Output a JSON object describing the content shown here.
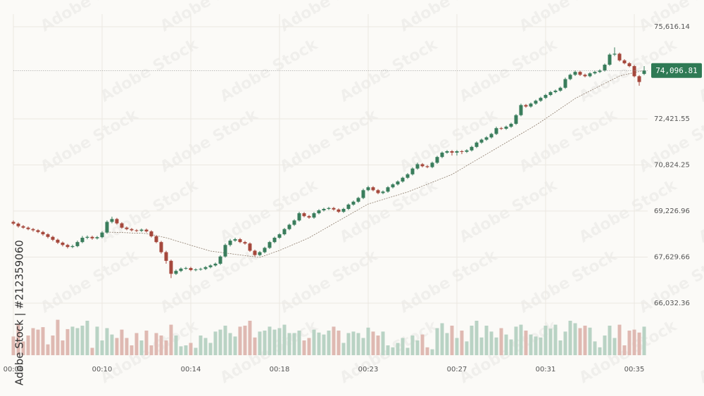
{
  "chart_data": {
    "type": "candlestick",
    "watermark": "Adobe Stock | #212359060",
    "watermark_logo": "Adobe Stock",
    "categories": [
      "00:06",
      null,
      null,
      null,
      null,
      null,
      null,
      null,
      null,
      null,
      null,
      null,
      null,
      null,
      null,
      null,
      null,
      null,
      "00:10",
      null,
      null,
      null,
      null,
      null,
      null,
      null,
      null,
      null,
      null,
      null,
      null,
      null,
      null,
      null,
      null,
      null,
      "00:14",
      null,
      null,
      null,
      null,
      null,
      null,
      null,
      null,
      null,
      null,
      null,
      null,
      null,
      null,
      null,
      null,
      null,
      "00:18",
      null,
      null,
      null,
      null,
      null,
      null,
      null,
      null,
      null,
      null,
      null,
      null,
      null,
      null,
      null,
      null,
      null,
      "00:23",
      null,
      null,
      null,
      null,
      null,
      null,
      null,
      null,
      null,
      null,
      null,
      null,
      null,
      null,
      null,
      null,
      null,
      "00:27",
      null,
      null,
      null,
      null,
      null,
      null,
      null,
      null,
      null,
      null,
      null,
      null,
      null,
      null,
      null,
      null,
      null,
      "00:31",
      null,
      null,
      null,
      null,
      null,
      null,
      null,
      null,
      null,
      null,
      null,
      null,
      null,
      null,
      null,
      null,
      null,
      "00:35",
      null,
      null
    ],
    "open": [
      68850,
      68790,
      68700,
      68650,
      68600,
      68560,
      68500,
      68420,
      68330,
      68230,
      68130,
      68050,
      67980,
      68010,
      68150,
      68300,
      68330,
      68280,
      68320,
      68480,
      68850,
      68950,
      68800,
      68650,
      68600,
      68560,
      68540,
      68580,
      68520,
      68350,
      68150,
      67800,
      67500,
      67050,
      67150,
      67230,
      67250,
      67180,
      67200,
      67220,
      67280,
      67340,
      67400,
      67650,
      68050,
      68200,
      68250,
      68150,
      68100,
      67850,
      67700,
      67800,
      67950,
      68150,
      68300,
      68420,
      68600,
      68750,
      68900,
      69150,
      69050,
      69000,
      69150,
      69250,
      69300,
      69330,
      69280,
      69200,
      69300,
      69450,
      69550,
      69680,
      69950,
      70050,
      69950,
      69850,
      69900,
      70050,
      70150,
      70250,
      70380,
      70500,
      70700,
      70850,
      70780,
      70750,
      70900,
      71100,
      71250,
      71300,
      71250,
      71300,
      71280,
      71330,
      71450,
      71600,
      71700,
      71780,
      71900,
      72100,
      72080,
      72150,
      72250,
      72550,
      72900,
      72850,
      72950,
      73050,
      73150,
      73250,
      73350,
      73400,
      73500,
      73800,
      73950,
      74050,
      73950,
      73900,
      74000,
      74050,
      74100,
      74300,
      74650,
      74680,
      74450,
      74350,
      74250,
      73900,
      73980
    ],
    "high": [
      68900,
      68830,
      68740,
      68690,
      68640,
      68600,
      68540,
      68460,
      68370,
      68270,
      68170,
      68090,
      68060,
      68200,
      68360,
      68380,
      68370,
      68360,
      68530,
      68900,
      69030,
      68990,
      68840,
      68690,
      68640,
      68600,
      68620,
      68620,
      68560,
      68390,
      68190,
      67850,
      67540,
      67200,
      67270,
      67290,
      67290,
      67240,
      67260,
      67320,
      67380,
      67440,
      67690,
      68100,
      68260,
      68300,
      68290,
      68190,
      68140,
      67890,
      67840,
      67990,
      68190,
      68340,
      68460,
      68640,
      68790,
      68940,
      69200,
      69190,
      69090,
      69190,
      69290,
      69340,
      69370,
      69370,
      69320,
      69340,
      69490,
      69590,
      69720,
      70000,
      70100,
      70090,
      69990,
      69940,
      70090,
      70190,
      70290,
      70420,
      70540,
      70740,
      70900,
      70890,
      70820,
      70940,
      71140,
      71290,
      71340,
      71340,
      71340,
      71340,
      71370,
      71490,
      71640,
      71740,
      71820,
      71940,
      72150,
      72140,
      72190,
      72290,
      72590,
      72950,
      72940,
      72990,
      73090,
      73190,
      73290,
      73390,
      73440,
      73540,
      73850,
      73990,
      74100,
      74090,
      73990,
      74040,
      74090,
      74140,
      74340,
      74700,
      74900,
      74720,
      74490,
      74390,
      74290,
      73940,
      74250
    ],
    "low": [
      68740,
      68650,
      68610,
      68560,
      68510,
      68460,
      68370,
      68280,
      68180,
      68080,
      68000,
      67930,
      67940,
      67970,
      68110,
      68250,
      68230,
      68240,
      68280,
      68440,
      68800,
      68760,
      68610,
      68560,
      68520,
      68500,
      68500,
      68480,
      68310,
      68110,
      67750,
      67400,
      66900,
      67010,
      67110,
      67190,
      67140,
      67140,
      67160,
      67180,
      67240,
      67300,
      67360,
      67610,
      68000,
      68160,
      68110,
      68060,
      67810,
      67650,
      67660,
      67760,
      67910,
      68110,
      68260,
      68380,
      68560,
      68710,
      68860,
      69010,
      68960,
      68960,
      69110,
      69210,
      69260,
      69240,
      69160,
      69160,
      69260,
      69410,
      69510,
      69640,
      69910,
      69910,
      69810,
      69810,
      69860,
      70010,
      70110,
      70210,
      70340,
      70460,
      70660,
      70740,
      70710,
      70710,
      70860,
      71060,
      71210,
      71150,
      71150,
      71200,
      71240,
      71290,
      71410,
      71560,
      71660,
      71740,
      71860,
      72040,
      72040,
      72110,
      72210,
      72510,
      72810,
      72810,
      72910,
      73010,
      73110,
      73210,
      73310,
      73360,
      73460,
      73760,
      73910,
      73910,
      73860,
      73860,
      73960,
      74010,
      74060,
      74260,
      74600,
      74410,
      74310,
      74210,
      73860,
      73570,
      73940
    ],
    "close": [
      68790,
      68700,
      68650,
      68600,
      68560,
      68500,
      68420,
      68330,
      68230,
      68130,
      68050,
      67980,
      68010,
      68150,
      68300,
      68330,
      68280,
      68320,
      68480,
      68850,
      68950,
      68800,
      68650,
      68600,
      68560,
      68540,
      68580,
      68520,
      68350,
      68150,
      67800,
      67500,
      67050,
      67150,
      67230,
      67250,
      67180,
      67200,
      67220,
      67280,
      67340,
      67400,
      67650,
      68050,
      68200,
      68250,
      68150,
      68100,
      67850,
      67700,
      67800,
      67950,
      68150,
      68300,
      68420,
      68600,
      68750,
      68900,
      69150,
      69050,
      69000,
      69150,
      69250,
      69300,
      69330,
      69280,
      69200,
      69300,
      69450,
      69550,
      69680,
      69950,
      70050,
      69950,
      69850,
      69900,
      70050,
      70150,
      70250,
      70380,
      70500,
      70700,
      70850,
      70780,
      70750,
      70900,
      71100,
      71250,
      71300,
      71250,
      71300,
      71280,
      71330,
      71450,
      71600,
      71700,
      71780,
      71900,
      72100,
      72080,
      72150,
      72250,
      72550,
      72900,
      72850,
      72950,
      73050,
      73150,
      73250,
      73350,
      73400,
      73500,
      73800,
      73950,
      74050,
      73950,
      73900,
      74000,
      74050,
      74100,
      74300,
      74650,
      74680,
      74450,
      74350,
      74250,
      73900,
      73700,
      74096.81
    ],
    "volume": [
      38,
      62,
      28,
      40,
      55,
      52,
      57,
      22,
      40,
      72,
      30,
      53,
      58,
      55,
      60,
      70,
      15,
      58,
      30,
      55,
      42,
      35,
      52,
      35,
      20,
      45,
      30,
      50,
      20,
      45,
      40,
      30,
      62,
      40,
      18,
      20,
      25,
      15,
      40,
      35,
      25,
      48,
      52,
      60,
      45,
      38,
      58,
      60,
      70,
      36,
      48,
      50,
      58,
      52,
      55,
      62,
      45,
      45,
      50,
      30,
      35,
      52,
      46,
      42,
      50,
      58,
      50,
      25,
      45,
      48,
      45,
      35,
      56,
      48,
      40,
      48,
      20,
      16,
      25,
      35,
      15,
      40,
      30,
      42,
      16,
      12,
      55,
      65,
      45,
      60,
      35,
      50,
      28,
      60,
      70,
      36,
      60,
      48,
      36,
      55,
      42,
      32,
      58,
      62,
      50,
      42,
      38,
      36,
      60,
      54,
      62,
      30,
      48,
      70,
      65,
      55,
      60,
      56,
      28,
      16,
      40,
      60,
      35,
      62,
      20,
      50,
      52,
      46,
      58
    ],
    "moving_average": [
      null,
      null,
      null,
      null,
      null,
      null,
      null,
      null,
      null,
      null,
      null,
      null,
      null,
      null,
      null,
      null,
      null,
      null,
      null,
      68495,
      68490,
      68485,
      68480,
      68475,
      68465,
      68460,
      68455,
      68446,
      68410,
      68375,
      68335,
      68300,
      68250,
      68195,
      68145,
      68095,
      68040,
      67990,
      67940,
      67890,
      67837,
      67815,
      67795,
      67770,
      67750,
      67725,
      67705,
      67680,
      67660,
      67640,
      67617,
      67680,
      67740,
      67800,
      67860,
      67935,
      68005,
      68080,
      68150,
      68225,
      68300,
      68400,
      68495,
      68595,
      68690,
      68790,
      68885,
      68983,
      69080,
      69180,
      69275,
      69375,
      69470,
      69520,
      69575,
      69625,
      69680,
      69730,
      69780,
      69835,
      69886,
      69955,
      70020,
      70090,
      70155,
      70225,
      70290,
      70360,
      70425,
      70495,
      70595,
      70695,
      70800,
      70900,
      71000,
      71100,
      71200,
      71300,
      71400,
      71500,
      71600,
      71700,
      71800,
      71900,
      72000,
      72100,
      72202,
      72315,
      72430,
      72545,
      72660,
      72780,
      72895,
      73010,
      73129,
      73215,
      73305,
      73390,
      73475,
      73565,
      73650,
      73735,
      73820,
      73909,
      73950,
      73990,
      74025,
      74065,
      74104
    ],
    "ylim": [
      64228,
      76055
    ],
    "yticks": [
      {
        "value": 75616.14,
        "label": "75,616.14"
      },
      {
        "value": 72421.55,
        "label": "72,421.55"
      },
      {
        "value": 70824.25,
        "label": "70,824.25"
      },
      {
        "value": 69226.96,
        "label": "69,226.96"
      },
      {
        "value": 67629.66,
        "label": "67,629.66"
      },
      {
        "value": 66032.36,
        "label": "66,032.36"
      }
    ],
    "volume_lim": [
      0,
      100
    ],
    "last_price": {
      "value": 74096.81,
      "label": "74,096.81"
    },
    "grid": true,
    "up_color": "#3a7d5c",
    "down_color": "#a5483c",
    "volume_up_color": "#b9d3c4",
    "volume_down_color": "#dfb9b2",
    "ma_color": "#8c7b6b",
    "price_label_color": "#2f7a55"
  }
}
